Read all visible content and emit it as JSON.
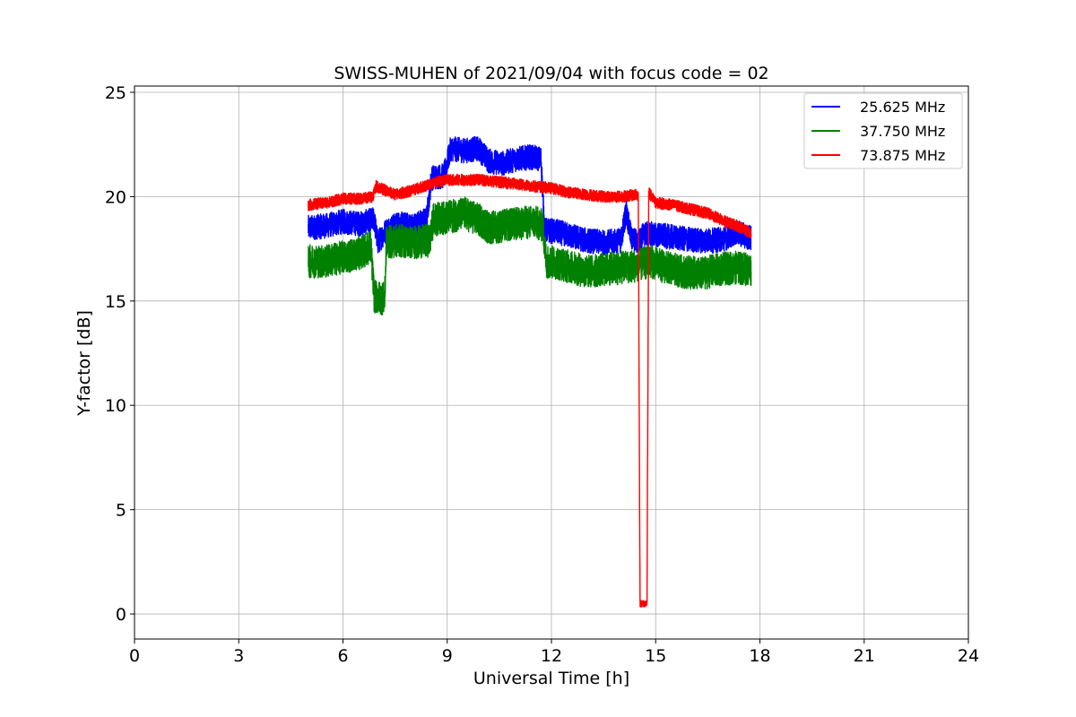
{
  "chart_data": {
    "type": "line",
    "title": "SWISS-MUHEN of 2021/09/04 with focus code = 02",
    "xlabel": "Universal Time [h]",
    "ylabel": "Y-factor [dB]",
    "xlim": [
      0,
      24
    ],
    "ylim": [
      -1.2,
      25.3
    ],
    "xticks": [
      0,
      3,
      6,
      9,
      12,
      15,
      18,
      21,
      24
    ],
    "xtick_labels": [
      "0",
      "3",
      "6",
      "9",
      "12",
      "15",
      "18",
      "21",
      "24"
    ],
    "yticks": [
      0,
      5,
      10,
      15,
      20,
      25
    ],
    "ytick_labels": [
      "0",
      "5",
      "10",
      "15",
      "20",
      "25"
    ],
    "grid": true,
    "legend_position": "top-right",
    "series": [
      {
        "name": "25.625 MHz",
        "color": "#0000ff",
        "band": 1.2,
        "points": [
          [
            5.0,
            18.5
          ],
          [
            5.5,
            18.6
          ],
          [
            6.0,
            18.8
          ],
          [
            6.5,
            18.7
          ],
          [
            6.9,
            18.9
          ],
          [
            7.0,
            17.8
          ],
          [
            7.25,
            18.4
          ],
          [
            7.6,
            18.7
          ],
          [
            8.0,
            18.6
          ],
          [
            8.4,
            18.9
          ],
          [
            8.55,
            20.9
          ],
          [
            8.9,
            21.0
          ],
          [
            9.1,
            22.3
          ],
          [
            9.5,
            22.2
          ],
          [
            9.9,
            22.3
          ],
          [
            10.2,
            21.7
          ],
          [
            10.6,
            21.6
          ],
          [
            11.0,
            21.8
          ],
          [
            11.4,
            21.9
          ],
          [
            11.7,
            21.8
          ],
          [
            11.8,
            18.4
          ],
          [
            12.2,
            18.3
          ],
          [
            12.6,
            18.1
          ],
          [
            13.0,
            17.9
          ],
          [
            13.5,
            17.8
          ],
          [
            14.0,
            17.9
          ],
          [
            14.15,
            19.3
          ],
          [
            14.3,
            18.0
          ],
          [
            14.5,
            17.8
          ],
          [
            14.65,
            18.2
          ],
          [
            14.9,
            18.2
          ],
          [
            15.3,
            18.1
          ],
          [
            15.7,
            18.0
          ],
          [
            16.2,
            17.9
          ],
          [
            16.7,
            17.9
          ],
          [
            17.0,
            18.0
          ],
          [
            17.3,
            18.3
          ],
          [
            17.75,
            18.0
          ]
        ]
      },
      {
        "name": "37.750 MHz",
        "color": "#008000",
        "band": 1.6,
        "points": [
          [
            5.0,
            16.9
          ],
          [
            5.5,
            16.9
          ],
          [
            6.0,
            17.1
          ],
          [
            6.5,
            17.3
          ],
          [
            6.8,
            17.6
          ],
          [
            6.9,
            15.2
          ],
          [
            7.2,
            15.1
          ],
          [
            7.25,
            17.8
          ],
          [
            7.6,
            17.9
          ],
          [
            8.0,
            17.8
          ],
          [
            8.5,
            17.9
          ],
          [
            8.6,
            18.9
          ],
          [
            9.0,
            19.0
          ],
          [
            9.5,
            19.2
          ],
          [
            10.0,
            18.8
          ],
          [
            10.2,
            18.5
          ],
          [
            10.6,
            18.6
          ],
          [
            11.0,
            18.7
          ],
          [
            11.5,
            18.8
          ],
          [
            11.75,
            18.6
          ],
          [
            11.85,
            16.9
          ],
          [
            12.2,
            16.8
          ],
          [
            12.6,
            16.6
          ],
          [
            13.0,
            16.4
          ],
          [
            13.5,
            16.5
          ],
          [
            14.0,
            16.6
          ],
          [
            14.5,
            16.7
          ],
          [
            14.85,
            16.9
          ],
          [
            15.3,
            16.6
          ],
          [
            15.8,
            16.4
          ],
          [
            16.3,
            16.3
          ],
          [
            16.8,
            16.5
          ],
          [
            17.3,
            16.6
          ],
          [
            17.75,
            16.5
          ]
        ]
      },
      {
        "name": "73.875 MHz",
        "color": "#ff0000",
        "band": 0.55,
        "points": [
          [
            5.0,
            19.6
          ],
          [
            5.5,
            19.7
          ],
          [
            6.0,
            19.9
          ],
          [
            6.5,
            19.9
          ],
          [
            6.85,
            20.0
          ],
          [
            6.95,
            20.5
          ],
          [
            7.5,
            20.1
          ],
          [
            8.0,
            20.3
          ],
          [
            8.5,
            20.6
          ],
          [
            9.0,
            20.8
          ],
          [
            9.5,
            20.8
          ],
          [
            10.0,
            20.8
          ],
          [
            10.5,
            20.7
          ],
          [
            11.0,
            20.6
          ],
          [
            11.5,
            20.5
          ],
          [
            12.0,
            20.4
          ],
          [
            12.5,
            20.2
          ],
          [
            13.0,
            20.1
          ],
          [
            13.5,
            20.0
          ],
          [
            14.0,
            20.0
          ],
          [
            14.5,
            20.1
          ],
          [
            14.55,
            0.5
          ],
          [
            14.75,
            0.5
          ],
          [
            14.8,
            20.2
          ],
          [
            15.0,
            19.7
          ],
          [
            15.5,
            19.6
          ],
          [
            16.0,
            19.4
          ],
          [
            16.5,
            19.2
          ],
          [
            17.0,
            18.8
          ],
          [
            17.5,
            18.5
          ],
          [
            17.75,
            18.2
          ]
        ]
      }
    ]
  }
}
